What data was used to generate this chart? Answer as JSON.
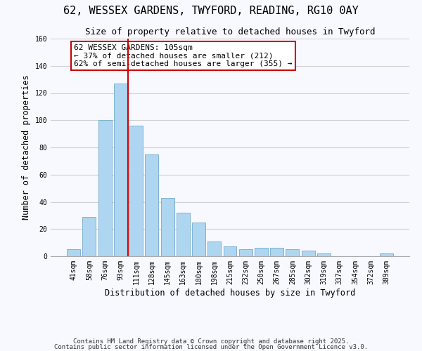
{
  "title": "62, WESSEX GARDENS, TWYFORD, READING, RG10 0AY",
  "subtitle": "Size of property relative to detached houses in Twyford",
  "xlabel": "Distribution of detached houses by size in Twyford",
  "ylabel": "Number of detached properties",
  "bar_labels": [
    "41sqm",
    "58sqm",
    "76sqm",
    "93sqm",
    "111sqm",
    "128sqm",
    "145sqm",
    "163sqm",
    "180sqm",
    "198sqm",
    "215sqm",
    "232sqm",
    "250sqm",
    "267sqm",
    "285sqm",
    "302sqm",
    "319sqm",
    "337sqm",
    "354sqm",
    "372sqm",
    "389sqm"
  ],
  "bar_values": [
    5,
    29,
    100,
    127,
    96,
    75,
    43,
    32,
    25,
    11,
    7,
    5,
    6,
    6,
    5,
    4,
    2,
    0,
    0,
    0,
    2
  ],
  "bar_color": "#aed6f1",
  "bar_edge_color": "#7fb3d3",
  "vline_index": 4,
  "vline_color": "#cc0000",
  "annotation_text": "62 WESSEX GARDENS: 105sqm\n← 37% of detached houses are smaller (212)\n62% of semi-detached houses are larger (355) →",
  "annotation_box_color": "white",
  "annotation_box_edge_color": "#cc0000",
  "ylim": [
    0,
    160
  ],
  "yticks": [
    0,
    20,
    40,
    60,
    80,
    100,
    120,
    140,
    160
  ],
  "grid_color": "#d0d0d0",
  "bg_color": "#f8f8ff",
  "footer1": "Contains HM Land Registry data © Crown copyright and database right 2025.",
  "footer2": "Contains public sector information licensed under the Open Government Licence v3.0.",
  "title_fontsize": 11,
  "subtitle_fontsize": 9,
  "axis_label_fontsize": 8.5,
  "tick_fontsize": 7,
  "annotation_fontsize": 8,
  "footer_fontsize": 6.5
}
